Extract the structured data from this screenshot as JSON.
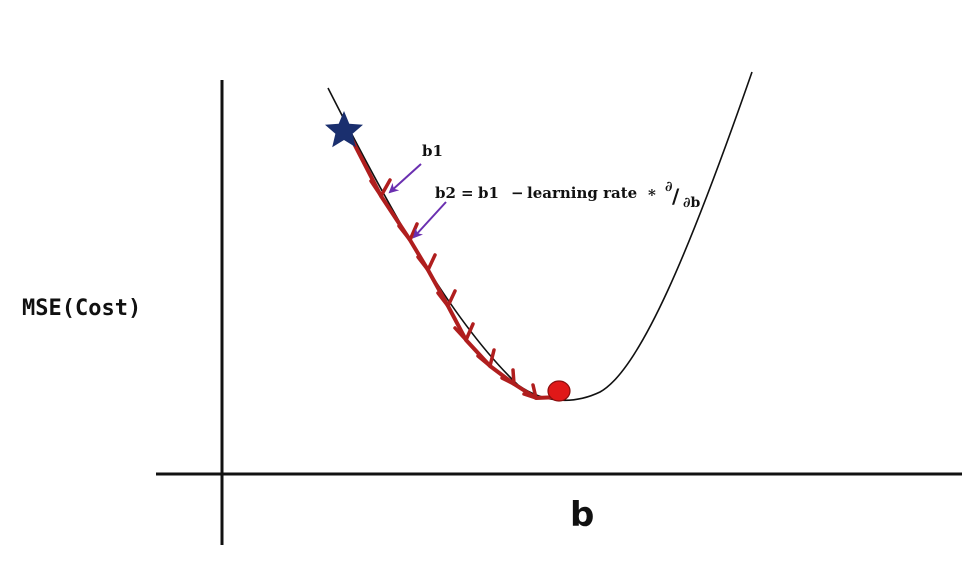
{
  "diagram": {
    "y_axis_label": "MSE(Cost)",
    "x_axis_label": "b",
    "annotation_b1": "b1",
    "update_rule": {
      "lhs": "b2",
      "eq": "=",
      "term": "b1",
      "minus": "−",
      "lr": "learning rate",
      "times": "*",
      "partial_num": "∂",
      "slash": "/",
      "partial_den": "∂b"
    },
    "start_marker": "star-icon",
    "minimum_marker": "circle",
    "colors": {
      "axis": "#111111",
      "curve": "#111111",
      "descent_path": "#b01e1e",
      "annotation_arrow": "#6a2fb0",
      "star": "#1a2f6e",
      "minimum": "#e01818"
    }
  }
}
